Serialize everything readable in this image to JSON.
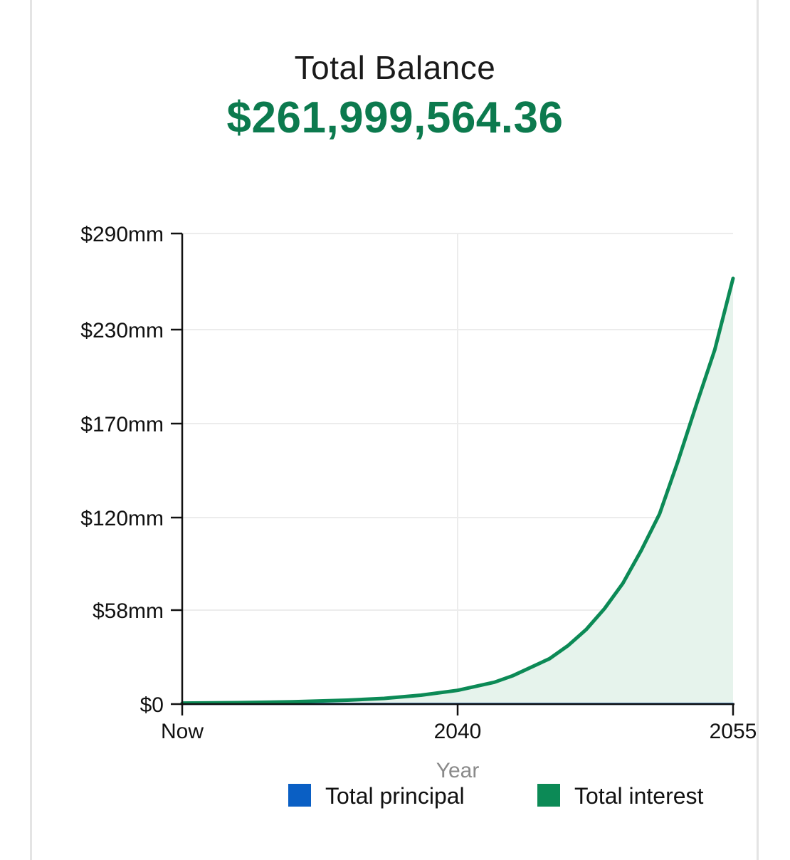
{
  "header": {
    "title": "Total Balance",
    "balance": "$261,999,564.36"
  },
  "colors": {
    "principal": "#0a5fc4",
    "interest": "#0c8a56",
    "interest_fill": "#e6f3ec",
    "grid": "#ececec",
    "axis": "#111111",
    "balance_text": "#0c7a4e"
  },
  "chart_data": {
    "type": "area",
    "xlabel": "Year",
    "ylabel": "",
    "x_ticks": [
      {
        "label": "Now",
        "value": 2025
      },
      {
        "label": "2040",
        "value": 2040
      },
      {
        "label": "2055",
        "value": 2055
      }
    ],
    "y_ticks": [
      {
        "label": "$0",
        "value": 0
      },
      {
        "label": "$58mm",
        "value": 58
      },
      {
        "label": "$120mm",
        "value": 120
      },
      {
        "label": "$170mm",
        "value": 170
      },
      {
        "label": "$230mm",
        "value": 230
      },
      {
        "label": "$290mm",
        "value": 290
      }
    ],
    "xlim": [
      2025,
      2055
    ],
    "ylim": [
      0,
      290
    ],
    "grid": true,
    "legend_position": "bottom-right",
    "series": [
      {
        "name": "Total principal",
        "color": "#0a5fc4",
        "x": [
          2025,
          2030,
          2035,
          2040,
          2045,
          2050,
          2055
        ],
        "y": [
          0.1,
          0.1,
          0.1,
          0.1,
          0.1,
          0.1,
          0.1
        ]
      },
      {
        "name": "Total interest",
        "color": "#0c8a56",
        "x": [
          2025,
          2028,
          2031,
          2034,
          2036,
          2038,
          2040,
          2042,
          2043,
          2045,
          2046,
          2047,
          2048,
          2049,
          2050,
          2051,
          2052,
          2053,
          2054,
          2055
        ],
        "y": [
          0.6,
          0.9,
          1.4,
          2.4,
          3.5,
          5.5,
          8.5,
          13.5,
          17.5,
          28,
          36,
          46,
          59,
          76,
          98,
          122,
          150,
          182,
          217,
          262
        ]
      }
    ]
  }
}
